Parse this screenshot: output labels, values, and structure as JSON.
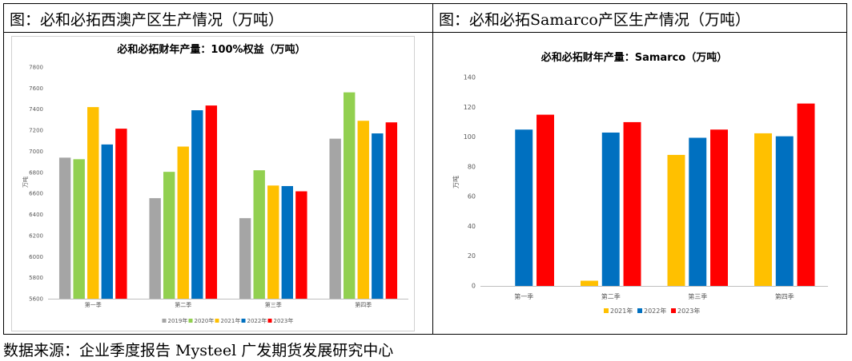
{
  "panels": {
    "left_title": "图：必和必拓西澳产区生产情况（万吨）",
    "right_title": "图：必和必拓Samarco产区生产情况（万吨）"
  },
  "source": "数据来源：企业季度报告 Mysteel 广发期货发展研究中心",
  "chart_data": [
    {
      "type": "bar",
      "title": "必和必拓财年产量：100%权益（万吨）",
      "xlabel": "",
      "ylabel": "万吨",
      "categories": [
        "第一季",
        "第二季",
        "第三季",
        "第四季"
      ],
      "ylim": [
        5600,
        7800
      ],
      "yticks": [
        5600,
        5800,
        6000,
        6200,
        6400,
        6600,
        6800,
        7000,
        7200,
        7400,
        7600,
        7800
      ],
      "series": [
        {
          "name": "2019年",
          "color": "#A5A5A5",
          "values": [
            6940,
            6555,
            6365,
            7120
          ]
        },
        {
          "name": "2020年",
          "color": "#92D050",
          "values": [
            6925,
            6805,
            6820,
            7560
          ]
        },
        {
          "name": "2021年",
          "color": "#FFC000",
          "values": [
            7420,
            7045,
            6675,
            7290
          ]
        },
        {
          "name": "2022年",
          "color": "#0070C0",
          "values": [
            7065,
            7390,
            6670,
            7170
          ]
        },
        {
          "name": "2023年",
          "color": "#FF0000",
          "values": [
            7215,
            7435,
            6620,
            7275
          ]
        }
      ],
      "legend": "bottom"
    },
    {
      "type": "bar",
      "title": "必和必拓财年产量：Samarco（万吨）",
      "xlabel": "",
      "ylabel": "万吨",
      "categories": [
        "第一季",
        "第二季",
        "第三季",
        "第四季"
      ],
      "ylim": [
        0,
        140
      ],
      "yticks": [
        0,
        20,
        40,
        60,
        80,
        100,
        120,
        140
      ],
      "series": [
        {
          "name": "2021年",
          "color": "#FFC000",
          "values": [
            0,
            3.5,
            88,
            102.5
          ]
        },
        {
          "name": "2022年",
          "color": "#0070C0",
          "values": [
            105,
            103,
            99.5,
            100.5
          ]
        },
        {
          "name": "2023年",
          "color": "#FF0000",
          "values": [
            115,
            110,
            105,
            122.5
          ]
        }
      ],
      "legend": "bottom"
    }
  ]
}
